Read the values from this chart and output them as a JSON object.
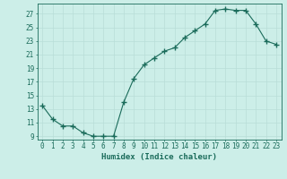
{
  "x": [
    0,
    1,
    2,
    3,
    4,
    5,
    6,
    7,
    8,
    9,
    10,
    11,
    12,
    13,
    14,
    15,
    16,
    17,
    18,
    19,
    20,
    21,
    22,
    23
  ],
  "y": [
    13.5,
    11.5,
    10.5,
    10.5,
    9.5,
    9.0,
    9.0,
    9.0,
    14.0,
    17.5,
    19.5,
    20.5,
    21.5,
    22.0,
    23.5,
    24.5,
    25.5,
    27.5,
    27.7,
    27.5,
    27.5,
    25.5,
    23.0,
    22.5
  ],
  "line_color": "#1a6b5a",
  "marker_color": "#1a6b5a",
  "bg_color": "#cceee8",
  "grid_color": "#b8ddd8",
  "xlabel": "Humidex (Indice chaleur)",
  "xlim": [
    -0.5,
    23.5
  ],
  "ylim": [
    8.5,
    28.5
  ],
  "yticks": [
    9,
    11,
    13,
    15,
    17,
    19,
    21,
    23,
    25,
    27
  ],
  "xticks": [
    0,
    1,
    2,
    3,
    4,
    5,
    6,
    7,
    8,
    9,
    10,
    11,
    12,
    13,
    14,
    15,
    16,
    17,
    18,
    19,
    20,
    21,
    22,
    23
  ],
  "label_fontsize": 6.5,
  "tick_fontsize": 5.5
}
